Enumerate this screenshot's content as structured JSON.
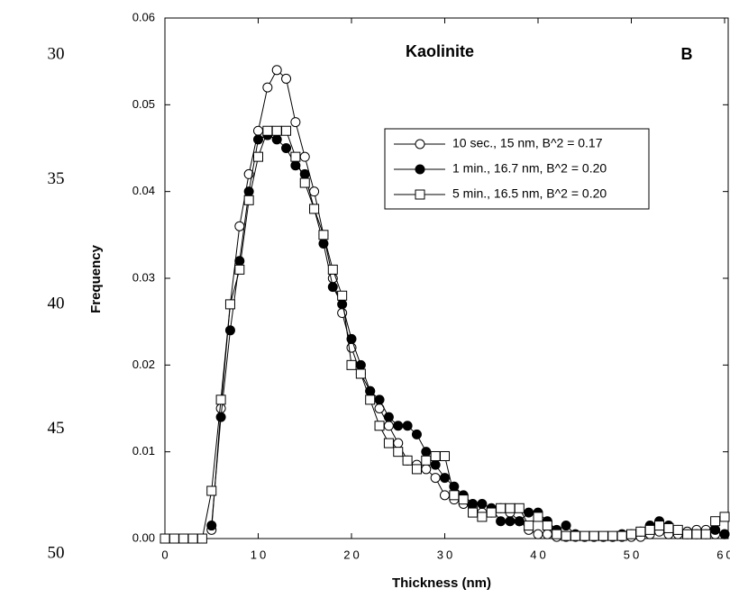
{
  "margin_line_numbers": [
    30,
    35,
    40,
    45,
    50
  ],
  "chart_data": {
    "type": "line",
    "title": "Kaolinite",
    "panel_label": "B",
    "x_label": "Thickness  (nm)",
    "y_label": "Frequency",
    "xlim": [
      0,
      60
    ],
    "ylim": [
      0,
      0.06
    ],
    "xticks": [
      0,
      10,
      20,
      30,
      40,
      50,
      60
    ],
    "yticks": [
      {
        "value": 0,
        "label": "0.00"
      },
      {
        "value": 0.01,
        "label": "0.01"
      },
      {
        "value": 0.02,
        "label": "0.02"
      },
      {
        "value": 0.03,
        "label": "0.03"
      },
      {
        "value": 0.04,
        "label": "0.04"
      },
      {
        "value": 0.05,
        "label": "0.05"
      },
      {
        "value": 0.06,
        "label": "0.06"
      }
    ],
    "x": [
      0,
      1,
      2,
      3,
      4,
      5,
      6,
      7,
      8,
      9,
      10,
      11,
      12,
      13,
      14,
      15,
      16,
      17,
      18,
      19,
      20,
      21,
      22,
      23,
      24,
      25,
      26,
      27,
      28,
      29,
      30,
      31,
      32,
      33,
      34,
      35,
      36,
      37,
      38,
      39,
      40,
      41,
      42,
      43,
      44,
      45,
      46,
      47,
      48,
      49,
      50,
      51,
      52,
      53,
      54,
      55,
      56,
      57,
      58,
      59,
      60
    ],
    "series": [
      {
        "name": "10 sec., 15 nm, B^2 = 0.17",
        "color": "#000000",
        "marker": "open-circle",
        "values": [
          null,
          null,
          null,
          null,
          null,
          0.001,
          0.015,
          0.027,
          0.036,
          0.042,
          0.047,
          0.052,
          0.054,
          0.053,
          0.048,
          0.044,
          0.04,
          0.035,
          0.03,
          0.026,
          0.022,
          0.019,
          0.017,
          0.015,
          0.013,
          0.011,
          0.009,
          0.0085,
          0.008,
          0.007,
          0.005,
          0.0045,
          0.004,
          0.0035,
          0.003,
          0.003,
          0.0035,
          0.003,
          0.002,
          0.001,
          0.0005,
          0.0005,
          0.0002,
          0.0002,
          0.0002,
          0.0002,
          0.0002,
          0.0002,
          0.0002,
          0.0002,
          0.0002,
          0.0002,
          0.0005,
          0.0008,
          0.0005,
          0.0005,
          0.0008,
          0.001,
          0.001,
          0.0005,
          0.0005
        ]
      },
      {
        "name": "1  min., 16.7 nm, B^2 = 0.20",
        "color": "#000000",
        "marker": "filled-circle",
        "values": [
          null,
          null,
          null,
          null,
          null,
          0.0015,
          0.014,
          0.024,
          0.032,
          0.04,
          0.046,
          0.0465,
          0.046,
          0.045,
          0.043,
          0.042,
          0.038,
          0.034,
          0.029,
          0.027,
          0.023,
          0.02,
          0.017,
          0.016,
          0.014,
          0.013,
          0.013,
          0.012,
          0.01,
          0.0085,
          0.007,
          0.006,
          0.005,
          0.004,
          0.004,
          0.0035,
          0.002,
          0.002,
          0.002,
          0.003,
          0.003,
          0.002,
          0.001,
          0.0015,
          0.0005,
          0.0002,
          0.0002,
          0.0002,
          0.0002,
          0.0005,
          0.0005,
          0.0008,
          0.0015,
          0.002,
          0.0015,
          0.001,
          0.0005,
          0.0005,
          0.0005,
          0.001,
          0.0005
        ]
      },
      {
        "name": "5 min., 16.5 nm, B^2 = 0.20",
        "color": "#000000",
        "marker": "open-square",
        "values": [
          0,
          0,
          0,
          0,
          0,
          0.0055,
          0.016,
          0.027,
          0.031,
          0.039,
          0.044,
          0.047,
          0.047,
          0.047,
          0.044,
          0.041,
          0.038,
          0.035,
          0.031,
          0.028,
          0.02,
          0.019,
          0.016,
          0.013,
          0.011,
          0.01,
          0.009,
          0.008,
          0.009,
          0.0095,
          0.0095,
          0.005,
          0.0045,
          0.003,
          0.0025,
          0.003,
          0.0035,
          0.0035,
          0.0035,
          0.0015,
          0.0025,
          0.0015,
          0.0005,
          0.0003,
          0.0003,
          0.0003,
          0.0003,
          0.0003,
          0.0003,
          0.0003,
          0.0005,
          0.0008,
          0.001,
          0.0015,
          0.0012,
          0.001,
          0.0005,
          0.0005,
          0.0005,
          0.002,
          0.0025
        ]
      }
    ]
  }
}
